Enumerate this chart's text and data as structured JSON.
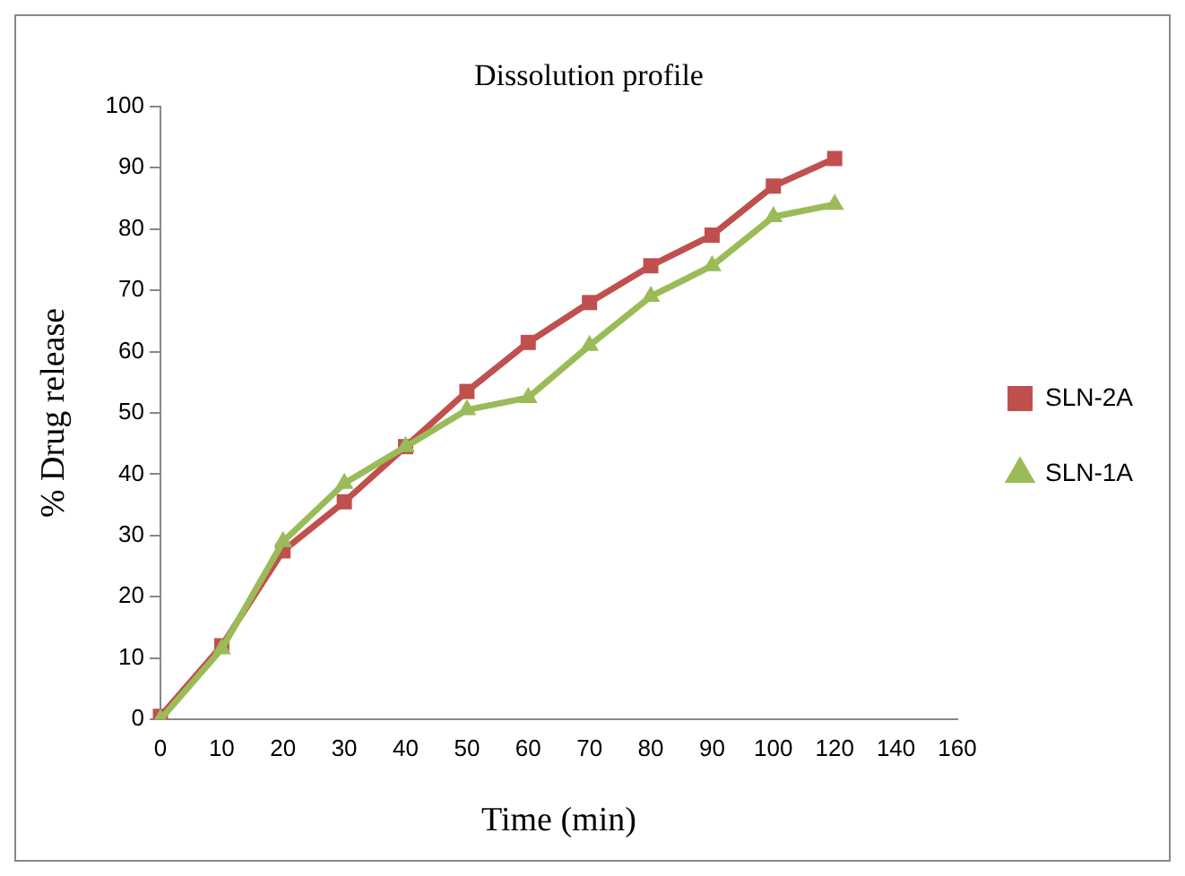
{
  "chart_data": {
    "type": "line",
    "title": "Dissolution profile",
    "xlabel": "Time (min)",
    "ylabel": "% Drug release",
    "categories": [
      "0",
      "10",
      "20",
      "30",
      "40",
      "50",
      "60",
      "70",
      "80",
      "90",
      "100",
      "120",
      "140",
      "160"
    ],
    "series": [
      {
        "name": "SLN-2A",
        "color": "#c0504d",
        "marker": "square",
        "values": [
          0.5,
          12,
          27.5,
          35.5,
          44.5,
          53.5,
          61.5,
          68,
          74,
          79,
          87,
          91.5,
          null,
          null
        ]
      },
      {
        "name": "SLN-1A",
        "color": "#9bbb59",
        "marker": "triangle",
        "values": [
          0,
          11.5,
          29,
          38.5,
          44.5,
          50.5,
          52.5,
          61,
          69,
          74,
          82,
          84,
          null,
          null
        ]
      }
    ],
    "ylim": [
      0,
      100
    ],
    "yticks": [
      0,
      10,
      20,
      30,
      40,
      50,
      60,
      70,
      80,
      90,
      100
    ],
    "grid": false,
    "legend": "right",
    "line_style": "solid"
  }
}
